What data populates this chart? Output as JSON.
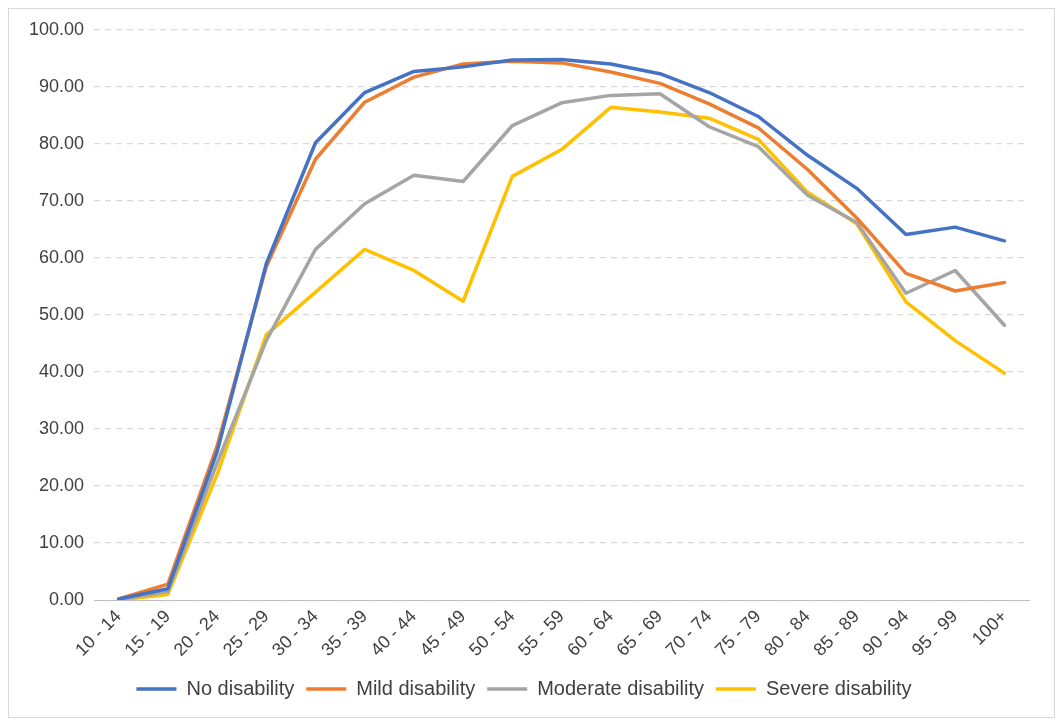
{
  "chart_data": {
    "type": "line",
    "categories": [
      "10 - 14",
      "15 - 19",
      "20 - 24",
      "25 - 29",
      "30 - 34",
      "35 - 39",
      "40 - 44",
      "45 - 49",
      "50 - 54",
      "55 - 59",
      "60 - 64",
      "65 - 69",
      "70 - 74",
      "75 - 79",
      "80 - 84",
      "85 - 89",
      "90 - 94",
      "95 - 99",
      "100+"
    ],
    "series": [
      {
        "name": "No disability",
        "color": "#4472c4",
        "values": [
          0.2,
          2,
          26,
          59,
          80.2,
          89,
          92.7,
          93.5,
          94.7,
          94.8,
          94,
          92.3,
          89,
          84.8,
          78,
          72.2,
          64.1,
          65.4,
          63
        ]
      },
      {
        "name": "Mild disability",
        "color": "#ed7d31",
        "values": [
          0.2,
          2.8,
          27,
          58.5,
          77.3,
          87.3,
          91.7,
          94,
          94.5,
          94.2,
          92.6,
          90.6,
          87,
          82.8,
          75.5,
          67,
          57.3,
          54.2,
          55.7
        ]
      },
      {
        "name": "Moderate disability",
        "color": "#a5a5a5",
        "values": [
          0.1,
          1.5,
          24,
          45.5,
          61.5,
          69.5,
          74.5,
          73.4,
          83.2,
          87.2,
          88.5,
          88.8,
          83,
          79.5,
          71,
          66.2,
          53.8,
          57.8,
          48.2
        ]
      },
      {
        "name": "Severe disability",
        "color": "#ffc000",
        "values": [
          0,
          1,
          22,
          46.5,
          54,
          61.5,
          57.8,
          52.4,
          74.3,
          79,
          86.4,
          85.6,
          84.5,
          80.8,
          71.5,
          66,
          52.3,
          45.5,
          39.8
        ]
      }
    ],
    "ylim": [
      0,
      100
    ],
    "yticks": [
      {
        "value": 0,
        "label": "0.00"
      },
      {
        "value": 10,
        "label": "10.00"
      },
      {
        "value": 20,
        "label": "20.00"
      },
      {
        "value": 30,
        "label": "30.00"
      },
      {
        "value": 40,
        "label": "40.00"
      },
      {
        "value": 50,
        "label": "50.00"
      },
      {
        "value": 60,
        "label": "60.00"
      },
      {
        "value": 70,
        "label": "70.00"
      },
      {
        "value": 80,
        "label": "80.00"
      },
      {
        "value": 90,
        "label": "90.00"
      },
      {
        "value": 100,
        "label": "100.00"
      }
    ],
    "grid": "y",
    "legend": "bottom",
    "marker": "none",
    "line_style": "solid"
  }
}
